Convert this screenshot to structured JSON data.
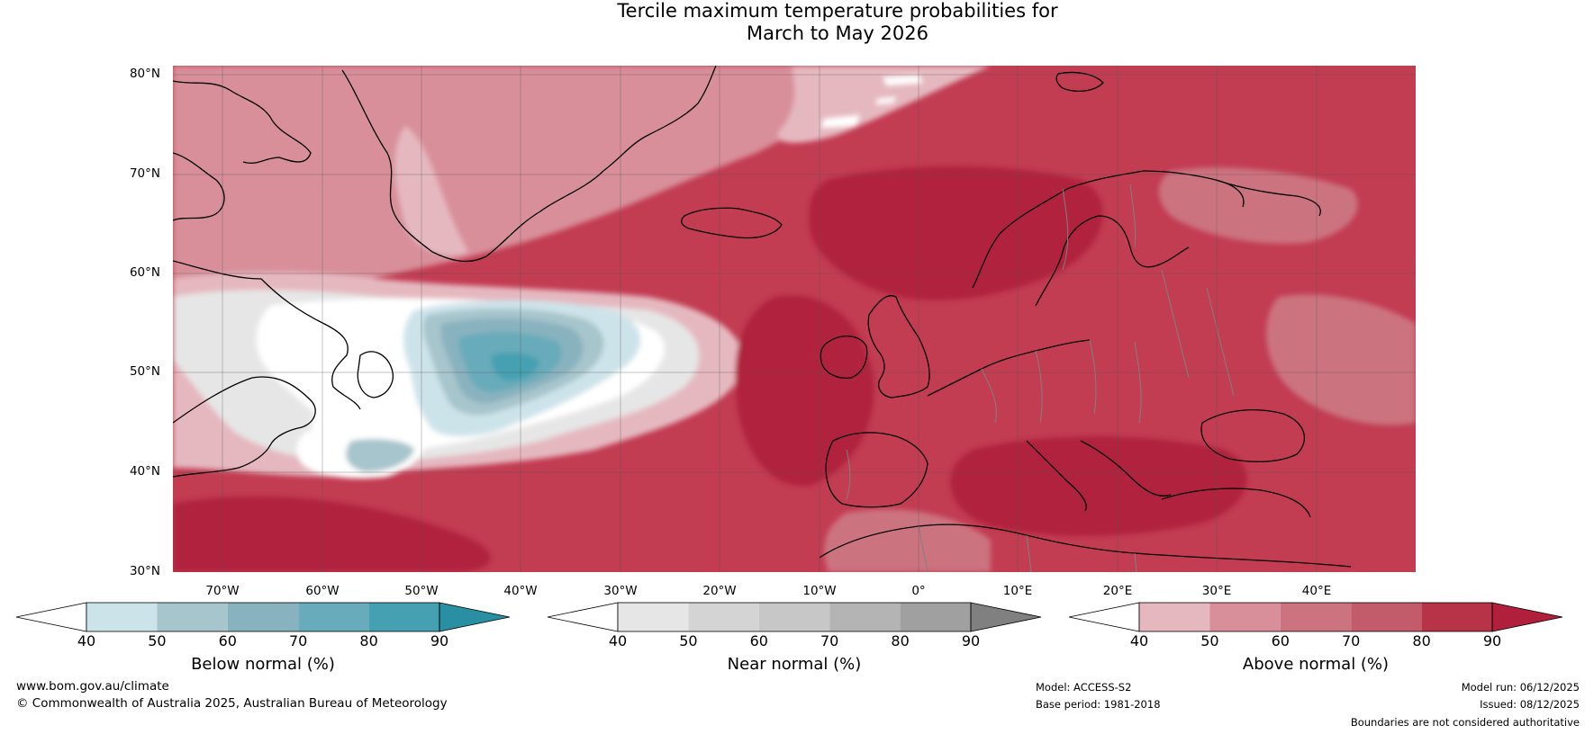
{
  "title": {
    "line1": "Tercile maximum temperature probabilities for",
    "line2": "March to May 2026"
  },
  "map": {
    "lat_labels": [
      "80°N",
      "70°N",
      "60°N",
      "50°N",
      "40°N",
      "30°N"
    ],
    "lon_labels": [
      "70°W",
      "60°W",
      "50°W",
      "40°W",
      "30°W",
      "20°W",
      "10°W",
      "0°",
      "10°E",
      "20°E",
      "30°E",
      "40°E"
    ],
    "extent": {
      "lon_min": -77,
      "lon_max": 48,
      "lat_min": 30,
      "lat_max": 81
    },
    "colors": {
      "ocean_base": "#c23c52",
      "coastline": "#000000",
      "borders": "#808080",
      "gridlines": "#555555"
    }
  },
  "colorbars": [
    {
      "name": "below",
      "title": "Below normal (%)",
      "ticks": [
        "40",
        "50",
        "60",
        "70",
        "80",
        "90"
      ],
      "colors": [
        "#ffffff",
        "#cde3ea",
        "#a7c5cc",
        "#89b2bf",
        "#68abba",
        "#45a0b2",
        "#2a8fa3"
      ]
    },
    {
      "name": "near",
      "title": "Near normal (%)",
      "ticks": [
        "40",
        "50",
        "60",
        "70",
        "80",
        "90"
      ],
      "colors": [
        "#ffffff",
        "#e6e6e6",
        "#d4d4d4",
        "#c7c7c7",
        "#b4b4b4",
        "#a0a0a0",
        "#808080"
      ]
    },
    {
      "name": "above",
      "title": "Above normal (%)",
      "ticks": [
        "40",
        "50",
        "60",
        "70",
        "80",
        "90"
      ],
      "colors": [
        "#ffffff",
        "#e5b8c0",
        "#d88f9a",
        "#cc7380",
        "#c25b6a",
        "#b73348",
        "#b0203c"
      ]
    }
  ],
  "footer": {
    "url": "www.bom.gov.au/climate",
    "copyright": "© Commonwealth of Australia 2025, Australian Bureau of Meteorology",
    "model": "Model: ACCESS-S2",
    "base_period": "Base period: 1981-2018",
    "model_run": "Model run: 06/12/2025",
    "issued": "Issued: 08/12/2025",
    "disclaimer": "Boundaries are not considered authoritative"
  }
}
